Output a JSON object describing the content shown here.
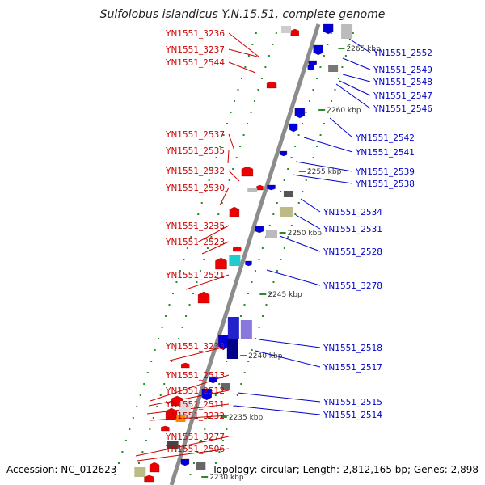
{
  "title": "Sulfolobus islandicus Y.N.15.51, complete genome",
  "footer": {
    "accession": "Accession: NC_012623",
    "topology": "Topology: circular; Length: 2,812,165 bp; Genes: 2,898"
  },
  "colors": {
    "forward": "#ee0000",
    "reverse": "#0000dd",
    "leader_left": "#cc0000",
    "leader_right": "#0000cc",
    "backbone": "#888888",
    "dots": "#2a8a2a"
  },
  "scale_ticks": [
    {
      "label": "2265 kbp"
    },
    {
      "label": "2260 kbp"
    },
    {
      "label": "2255 kbp"
    },
    {
      "label": "2250 kbp"
    },
    {
      "label": "2245 kbp"
    },
    {
      "label": "2240 kbp"
    },
    {
      "label": "2235 kbp"
    },
    {
      "label": "2230 kbp"
    }
  ],
  "left_genes": [
    {
      "label": "YN1551_3236"
    },
    {
      "label": "YN1551_3237"
    },
    {
      "label": "YN1551_2544"
    },
    {
      "label": "YN1551_2537"
    },
    {
      "label": "YN1551_2535"
    },
    {
      "label": "YN1551_2532"
    },
    {
      "label": "YN1551_2530"
    },
    {
      "label": "YN1551_3235"
    },
    {
      "label": "YN1551_2523"
    },
    {
      "label": "YN1551_2521"
    },
    {
      "label": "YN1551_3233"
    },
    {
      "label": "YN1551_2513"
    },
    {
      "label": "YN1551_2512"
    },
    {
      "label": "YN1551_2511"
    },
    {
      "label": "YN1551_3232"
    },
    {
      "label": "YN1551_3277"
    },
    {
      "label": "YN1551_2506"
    }
  ],
  "right_genes": [
    {
      "label": "YN1551_2552"
    },
    {
      "label": "YN1551_2549"
    },
    {
      "label": "YN1551_2548"
    },
    {
      "label": "YN1551_2547"
    },
    {
      "label": "YN1551_2546"
    },
    {
      "label": "YN1551_2542"
    },
    {
      "label": "YN1551_2541"
    },
    {
      "label": "YN1551_2539"
    },
    {
      "label": "YN1551_2538"
    },
    {
      "label": "YN1551_2534"
    },
    {
      "label": "YN1551_2531"
    },
    {
      "label": "YN1551_2528"
    },
    {
      "label": "YN1551_3278"
    },
    {
      "label": "YN1551_2518"
    },
    {
      "label": "YN1551_2517"
    },
    {
      "label": "YN1551_2515"
    },
    {
      "label": "YN1551_2514"
    }
  ]
}
